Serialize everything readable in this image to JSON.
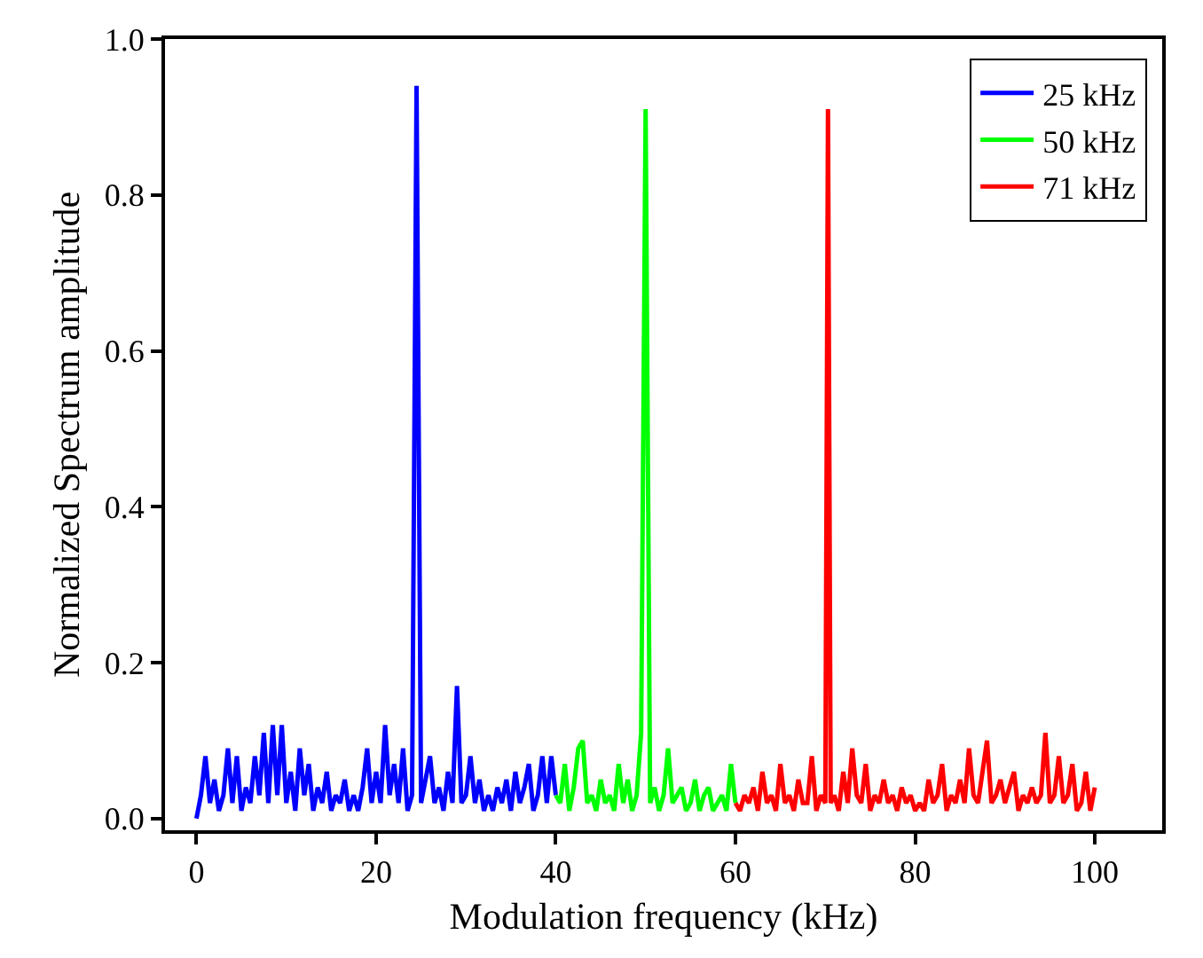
{
  "chart_data": {
    "type": "line",
    "xlabel": "Modulation frequency (kHz)",
    "ylabel": "Normalized Spectrum amplitude",
    "xlim": [
      -3.5,
      107.5
    ],
    "ylim": [
      -0.015,
      1.0
    ],
    "xticks": [
      0,
      20,
      40,
      60,
      80,
      100
    ],
    "yticks": [
      {
        "value": 0,
        "label": "0.0"
      },
      0.2,
      0.4,
      0.6,
      0.8,
      {
        "value": 1,
        "label": "1.0"
      }
    ],
    "grid": false,
    "legend": "top right",
    "marker": "none",
    "line_style": "solid",
    "series": [
      {
        "name": "25 kHz",
        "color": "#0000ff",
        "x": [
          0,
          0.5,
          1,
          1.5,
          2,
          2.5,
          3,
          3.5,
          4,
          4.5,
          5,
          5.5,
          6,
          6.5,
          7,
          7.5,
          8,
          8.5,
          9,
          9.5,
          10,
          10.5,
          11,
          11.5,
          12,
          12.5,
          13,
          13.5,
          14,
          14.5,
          15,
          15.5,
          16,
          16.5,
          17,
          17.5,
          18,
          18.5,
          19,
          19.5,
          20,
          20.5,
          21,
          21.5,
          22,
          22.5,
          23,
          23.5,
          24,
          24.5,
          25,
          25.5,
          26,
          26.5,
          27,
          27.5,
          28,
          28.5,
          29,
          29.5,
          30,
          30.5,
          31,
          31.5,
          32,
          32.5,
          33,
          33.5,
          34,
          34.5,
          35,
          35.5,
          36,
          36.5,
          37,
          37.5,
          38,
          38.5,
          39,
          39.5,
          40
        ],
        "values": [
          0.0,
          0.03,
          0.08,
          0.02,
          0.05,
          0.01,
          0.03,
          0.09,
          0.02,
          0.08,
          0.01,
          0.04,
          0.02,
          0.08,
          0.03,
          0.11,
          0.02,
          0.12,
          0.03,
          0.12,
          0.02,
          0.06,
          0.01,
          0.09,
          0.03,
          0.07,
          0.01,
          0.04,
          0.02,
          0.06,
          0.01,
          0.03,
          0.02,
          0.05,
          0.01,
          0.03,
          0.01,
          0.04,
          0.09,
          0.02,
          0.06,
          0.02,
          0.12,
          0.03,
          0.07,
          0.02,
          0.09,
          0.01,
          0.03,
          0.94,
          0.02,
          0.05,
          0.08,
          0.02,
          0.04,
          0.01,
          0.06,
          0.02,
          0.17,
          0.02,
          0.03,
          0.08,
          0.02,
          0.05,
          0.01,
          0.03,
          0.01,
          0.04,
          0.02,
          0.05,
          0.01,
          0.06,
          0.02,
          0.04,
          0.07,
          0.01,
          0.03,
          0.08,
          0.02,
          0.08,
          0.03
        ]
      },
      {
        "name": "50 kHz",
        "color": "#00ff00",
        "x": [
          40,
          40.5,
          41,
          41.5,
          42,
          42.5,
          43,
          43.5,
          44,
          44.5,
          45,
          45.5,
          46,
          46.5,
          47,
          47.5,
          48,
          48.5,
          49,
          49.5,
          50,
          50.5,
          51,
          51.5,
          52,
          52.5,
          53,
          53.5,
          54,
          54.5,
          55,
          55.5,
          56,
          56.5,
          57,
          57.5,
          58,
          58.5,
          59,
          59.5,
          60
        ],
        "values": [
          0.03,
          0.02,
          0.07,
          0.01,
          0.04,
          0.09,
          0.1,
          0.02,
          0.03,
          0.01,
          0.05,
          0.02,
          0.03,
          0.01,
          0.07,
          0.02,
          0.05,
          0.01,
          0.03,
          0.11,
          0.91,
          0.02,
          0.04,
          0.01,
          0.03,
          0.09,
          0.02,
          0.03,
          0.04,
          0.01,
          0.02,
          0.05,
          0.01,
          0.03,
          0.04,
          0.01,
          0.02,
          0.03,
          0.01,
          0.07,
          0.02
        ]
      },
      {
        "name": "71 kHz",
        "color": "#ff0000",
        "x": [
          60,
          60.5,
          61,
          61.5,
          62,
          62.5,
          63,
          63.5,
          64,
          64.5,
          65,
          65.5,
          66,
          66.5,
          67,
          67.5,
          68,
          68.5,
          69,
          69.5,
          70,
          70.3,
          70.6,
          71,
          71.5,
          72,
          72.5,
          73,
          73.5,
          74,
          74.5,
          75,
          75.5,
          76,
          76.5,
          77,
          77.5,
          78,
          78.5,
          79,
          79.5,
          80,
          80.5,
          81,
          81.5,
          82,
          82.5,
          83,
          83.5,
          84,
          84.5,
          85,
          85.5,
          86,
          86.5,
          87,
          87.5,
          88,
          88.5,
          89,
          89.5,
          90,
          90.5,
          91,
          91.5,
          92,
          92.5,
          93,
          93.5,
          94,
          94.5,
          95,
          95.5,
          96,
          96.5,
          97,
          97.5,
          98,
          98.5,
          99,
          99.5,
          100
        ],
        "values": [
          0.02,
          0.01,
          0.03,
          0.02,
          0.04,
          0.01,
          0.06,
          0.02,
          0.03,
          0.01,
          0.07,
          0.02,
          0.03,
          0.01,
          0.05,
          0.02,
          0.02,
          0.08,
          0.01,
          0.03,
          0.02,
          0.91,
          0.02,
          0.03,
          0.01,
          0.06,
          0.02,
          0.09,
          0.03,
          0.02,
          0.07,
          0.01,
          0.03,
          0.02,
          0.05,
          0.02,
          0.03,
          0.01,
          0.04,
          0.02,
          0.03,
          0.01,
          0.02,
          0.01,
          0.05,
          0.02,
          0.03,
          0.07,
          0.01,
          0.03,
          0.02,
          0.05,
          0.02,
          0.09,
          0.03,
          0.02,
          0.06,
          0.1,
          0.02,
          0.03,
          0.05,
          0.02,
          0.04,
          0.06,
          0.01,
          0.03,
          0.02,
          0.04,
          0.02,
          0.03,
          0.11,
          0.02,
          0.03,
          0.08,
          0.02,
          0.03,
          0.07,
          0.01,
          0.02,
          0.06,
          0.01,
          0.04
        ]
      }
    ]
  }
}
